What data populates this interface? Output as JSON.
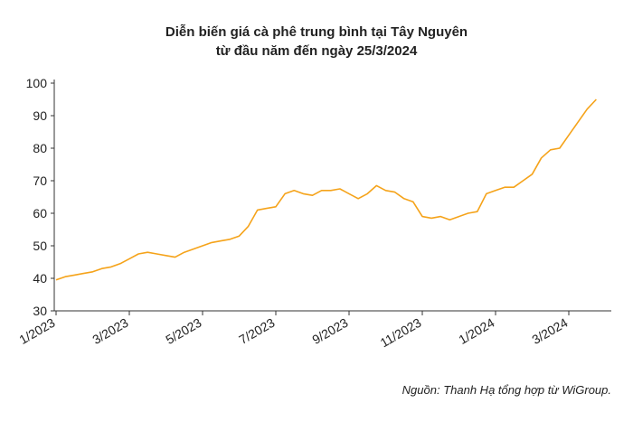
{
  "chart_data": {
    "type": "line",
    "title": "Diễn biến giá cà phê trung bình tại Tây Nguyên",
    "subtitle": "từ đầu năm đến ngày 25/3/2024",
    "source": "Nguồn: Thanh Hạ tổng hợp từ WiGroup.",
    "categories": [
      "1/2023",
      null,
      null,
      null,
      null,
      null,
      null,
      null,
      "3/2023",
      null,
      null,
      null,
      null,
      null,
      null,
      null,
      "5/2023",
      null,
      null,
      null,
      null,
      null,
      null,
      null,
      "7/2023",
      null,
      null,
      null,
      null,
      null,
      null,
      null,
      "9/2023",
      null,
      null,
      null,
      null,
      null,
      null,
      null,
      "11/2023",
      null,
      null,
      null,
      null,
      null,
      null,
      null,
      "1/2024",
      null,
      null,
      null,
      null,
      null,
      null,
      null,
      "3/2024",
      null,
      null,
      null
    ],
    "series": [
      {
        "name": "Giá cà phê",
        "color": "#f5a31a",
        "values": [
          39.5,
          40.5,
          41,
          41.5,
          42,
          43,
          43.5,
          44.5,
          46,
          47.5,
          48,
          47.5,
          47,
          46.5,
          48,
          49,
          50,
          51,
          51.5,
          52,
          53,
          56,
          61,
          61.5,
          62,
          66,
          67,
          66,
          65.5,
          67,
          67,
          67.5,
          66,
          64.5,
          66,
          68.5,
          67,
          66.5,
          64.5,
          63.5,
          59,
          58.5,
          59,
          58,
          59,
          60,
          60.5,
          66,
          67,
          68,
          68,
          70,
          72,
          77,
          79.5,
          80,
          84,
          88,
          92,
          95
        ]
      }
    ],
    "ylim": [
      30,
      100
    ],
    "yticks": [
      30,
      40,
      50,
      60,
      70,
      80,
      90,
      100
    ]
  }
}
